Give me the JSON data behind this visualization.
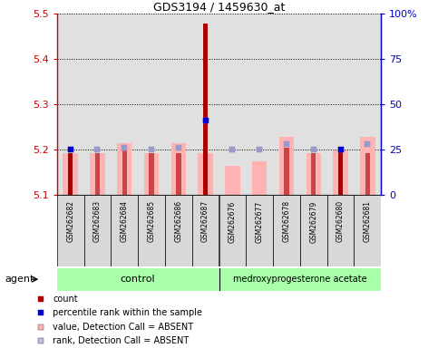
{
  "title": "GDS3194 / 1459630_at",
  "samples": [
    "GSM262682",
    "GSM262683",
    "GSM262684",
    "GSM262685",
    "GSM262686",
    "GSM262687",
    "GSM262676",
    "GSM262677",
    "GSM262678",
    "GSM262679",
    "GSM262680",
    "GSM262681"
  ],
  "n_control": 6,
  "n_treat": 6,
  "count_values": [
    5.193,
    5.193,
    5.205,
    5.193,
    5.193,
    5.478,
    5.1,
    5.1,
    5.205,
    5.193,
    5.198,
    5.193
  ],
  "count_is_dark": [
    true,
    false,
    false,
    false,
    false,
    true,
    false,
    false,
    false,
    false,
    true,
    false
  ],
  "value_absent": [
    5.193,
    5.193,
    5.215,
    5.193,
    5.215,
    5.193,
    5.165,
    5.175,
    5.228,
    5.193,
    5.198,
    5.228
  ],
  "rank_absent_pct": [
    25,
    25,
    26,
    25,
    26,
    41,
    25,
    25,
    28,
    25,
    25,
    28
  ],
  "percentile_rank_pct": [
    25,
    25,
    26,
    25,
    26,
    41,
    25,
    25,
    28,
    25,
    25,
    28
  ],
  "blue_square_dark": [
    true,
    false,
    false,
    false,
    false,
    true,
    false,
    false,
    false,
    false,
    true,
    false
  ],
  "ylim": [
    5.1,
    5.5
  ],
  "yticks_left": [
    5.1,
    5.2,
    5.3,
    5.4,
    5.5
  ],
  "yticks_right": [
    0,
    25,
    50,
    75,
    100
  ],
  "right_ylim": [
    0,
    100
  ],
  "left_color": "#cc0000",
  "right_color": "#0000cc",
  "bar_pink": "#ffb3b3",
  "bar_lavender": "#c0c0e0",
  "dark_red": "#aa0000",
  "light_red": "#cc4444",
  "dark_blue": "#0000cc",
  "light_blue": "#9999cc",
  "control_group_color": "#aaffaa",
  "treat_group_color": "#aaffaa",
  "col_bg_even": "#d8d8d8",
  "col_bg_odd": "#e8e8e8"
}
